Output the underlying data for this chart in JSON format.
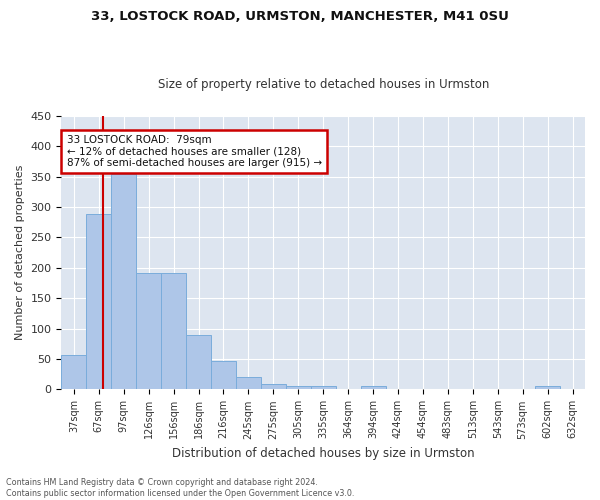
{
  "title1": "33, LOSTOCK ROAD, URMSTON, MANCHESTER, M41 0SU",
  "title2": "Size of property relative to detached houses in Urmston",
  "xlabel": "Distribution of detached houses by size in Urmston",
  "ylabel": "Number of detached properties",
  "footnote": "Contains HM Land Registry data © Crown copyright and database right 2024.\nContains public sector information licensed under the Open Government Licence v3.0.",
  "bar_labels": [
    "37sqm",
    "67sqm",
    "97sqm",
    "126sqm",
    "156sqm",
    "186sqm",
    "216sqm",
    "245sqm",
    "275sqm",
    "305sqm",
    "335sqm",
    "364sqm",
    "394sqm",
    "424sqm",
    "454sqm",
    "483sqm",
    "513sqm",
    "543sqm",
    "573sqm",
    "602sqm",
    "632sqm"
  ],
  "bar_values": [
    57,
    289,
    354,
    191,
    191,
    90,
    46,
    21,
    9,
    5,
    5,
    0,
    5,
    0,
    0,
    0,
    0,
    0,
    0,
    5,
    0
  ],
  "bar_color": "#aec6e8",
  "bar_edge_color": "#7aacdb",
  "background_color": "#dde5f0",
  "grid_color": "#ffffff",
  "fig_background": "#ffffff",
  "annotation_text": "33 LOSTOCK ROAD:  79sqm\n← 12% of detached houses are smaller (128)\n87% of semi-detached houses are larger (915) →",
  "annotation_box_color": "#ffffff",
  "annotation_box_edge_color": "#cc0000",
  "red_line_x": 1.18,
  "ylim": [
    0,
    450
  ],
  "yticks": [
    0,
    50,
    100,
    150,
    200,
    250,
    300,
    350,
    400,
    450
  ]
}
